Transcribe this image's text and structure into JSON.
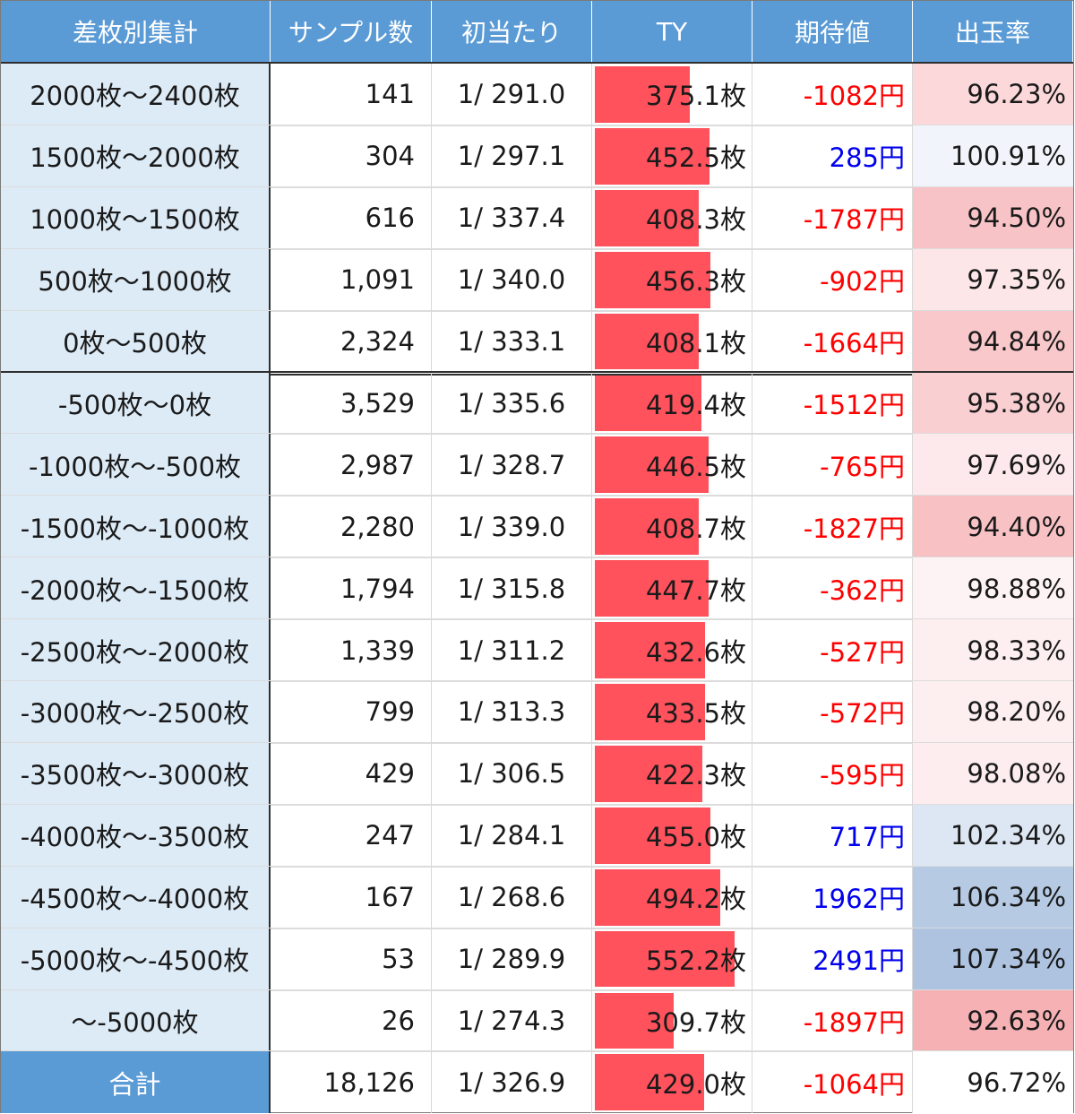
{
  "headers": [
    "差枚別集計",
    "サンプル数",
    "初当たり",
    "TY",
    "期待値",
    "出玉率"
  ],
  "rows": [
    {
      "range": "2000枚～2400枚",
      "samples": "141",
      "first_hit": "1/ 291.0",
      "ty": "375.1枚",
      "ty_value": 375.1,
      "ev": "-1082円",
      "ev_sign": "neg",
      "rate": "96.23%",
      "rate_color": "#fcd8da"
    },
    {
      "range": "1500枚～2000枚",
      "samples": "304",
      "first_hit": "1/ 297.1",
      "ty": "452.5枚",
      "ty_value": 452.5,
      "ev": "285円",
      "ev_sign": "pos",
      "rate": "100.91%",
      "rate_color": "#f1f5fb"
    },
    {
      "range": "1000枚～1500枚",
      "samples": "616",
      "first_hit": "1/ 337.4",
      "ty": "408.3枚",
      "ty_value": 408.3,
      "ev": "-1787円",
      "ev_sign": "neg",
      "rate": "94.50%",
      "rate_color": "#f8c3c6"
    },
    {
      "range": "500枚～1000枚",
      "samples": "1,091",
      "first_hit": "1/ 340.0",
      "ty": "456.3枚",
      "ty_value": 456.3,
      "ev": "-902円",
      "ev_sign": "neg",
      "rate": "97.35%",
      "rate_color": "#fde6e8"
    },
    {
      "range": "0枚～500枚",
      "samples": "2,324",
      "first_hit": "1/ 333.1",
      "ty": "408.1枚",
      "ty_value": 408.1,
      "ev": "-1664円",
      "ev_sign": "neg",
      "rate": "94.84%",
      "rate_color": "#f9c8cb"
    },
    {
      "range": "-500枚～0枚",
      "samples": "3,529",
      "first_hit": "1/ 335.6",
      "ty": "419.4枚",
      "ty_value": 419.4,
      "ev": "-1512円",
      "ev_sign": "neg",
      "rate": "95.38%",
      "rate_color": "#facfd2"
    },
    {
      "range": "-1000枚～-500枚",
      "samples": "2,987",
      "first_hit": "1/ 328.7",
      "ty": "446.5枚",
      "ty_value": 446.5,
      "ev": "-765円",
      "ev_sign": "neg",
      "rate": "97.69%",
      "rate_color": "#fde9eb"
    },
    {
      "range": "-1500枚～-1000枚",
      "samples": "2,280",
      "first_hit": "1/ 339.0",
      "ty": "408.7枚",
      "ty_value": 408.7,
      "ev": "-1827円",
      "ev_sign": "neg",
      "rate": "94.40%",
      "rate_color": "#f8c2c5"
    },
    {
      "range": "-2000枚～-1500枚",
      "samples": "1,794",
      "first_hit": "1/ 315.8",
      "ty": "447.7枚",
      "ty_value": 447.7,
      "ev": "-362円",
      "ev_sign": "neg",
      "rate": "98.88%",
      "rate_color": "#fef3f4"
    },
    {
      "range": "-2500枚～-2000枚",
      "samples": "1,339",
      "first_hit": "1/ 311.2",
      "ty": "432.6枚",
      "ty_value": 432.6,
      "ev": "-527円",
      "ev_sign": "neg",
      "rate": "98.33%",
      "rate_color": "#fdeff0"
    },
    {
      "range": "-3000枚～-2500枚",
      "samples": "799",
      "first_hit": "1/ 313.3",
      "ty": "433.5枚",
      "ty_value": 433.5,
      "ev": "-572円",
      "ev_sign": "neg",
      "rate": "98.20%",
      "rate_color": "#fdeef0"
    },
    {
      "range": "-3500枚～-3000枚",
      "samples": "429",
      "first_hit": "1/ 306.5",
      "ty": "422.3枚",
      "ty_value": 422.3,
      "ev": "-595円",
      "ev_sign": "neg",
      "rate": "98.08%",
      "rate_color": "#fdedef"
    },
    {
      "range": "-4000枚～-3500枚",
      "samples": "247",
      "first_hit": "1/ 284.1",
      "ty": "455.0枚",
      "ty_value": 455.0,
      "ev": "717円",
      "ev_sign": "pos",
      "rate": "102.34%",
      "rate_color": "#dde7f3"
    },
    {
      "range": "-4500枚～-4000枚",
      "samples": "167",
      "first_hit": "1/ 268.6",
      "ty": "494.2枚",
      "ty_value": 494.2,
      "ev": "1962円",
      "ev_sign": "pos",
      "rate": "106.34%",
      "rate_color": "#b6cae4"
    },
    {
      "range": "-5000枚～-4500枚",
      "samples": "53",
      "first_hit": "1/ 289.9",
      "ty": "552.2枚",
      "ty_value": 552.2,
      "ev": "2491円",
      "ev_sign": "pos",
      "rate": "107.34%",
      "rate_color": "#adc3e0"
    },
    {
      "range": "～-5000枚",
      "samples": "26",
      "first_hit": "1/ 274.3",
      "ty": "309.7枚",
      "ty_value": 309.7,
      "ev": "-1897円",
      "ev_sign": "neg",
      "rate": "92.63%",
      "rate_color": "#f6b1b5"
    }
  ],
  "total": {
    "range": "合計",
    "samples": "18,126",
    "first_hit": "1/ 326.9",
    "ty": "429.0枚",
    "ty_value": 429.0,
    "ev": "-1064円",
    "ev_sign": "neg",
    "rate": "96.72%",
    "rate_color": "#ffffff"
  },
  "colors": {
    "header_bg": "#5b9bd5",
    "label_bg": "#ddebf7",
    "bar": "#ff525c",
    "negative": "#ff0000",
    "positive": "#0000ee"
  }
}
